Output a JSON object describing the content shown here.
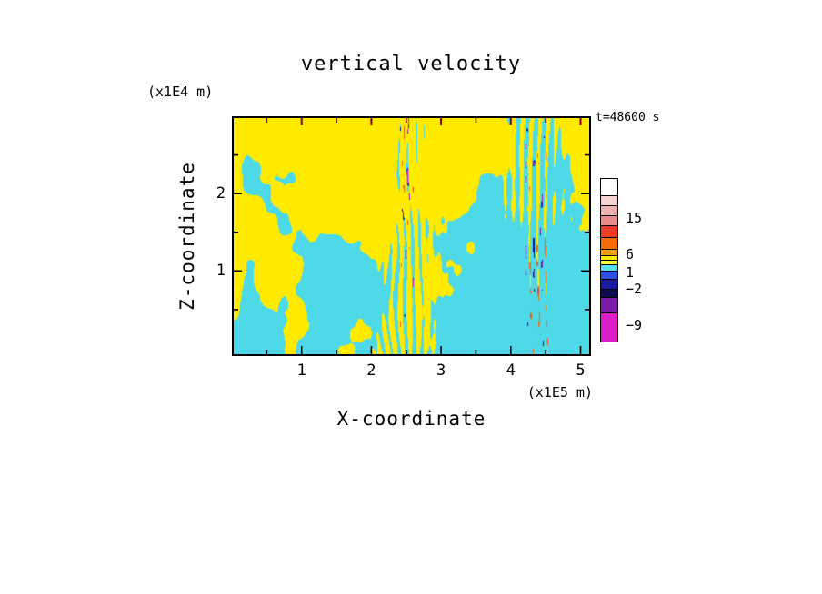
{
  "title": "vertical velocity",
  "time_label": "t=48600 s",
  "axes": {
    "x_label": "X-coordinate",
    "x_unit": "(x1E5 m)",
    "x_ticks": [
      "1",
      "2",
      "3",
      "4",
      "5"
    ],
    "y_label": "Z-coordinate",
    "y_unit": "(x1E4 m)",
    "y_ticks": [
      "1",
      "2"
    ]
  },
  "colorbar": {
    "segments": [
      {
        "color": "#FFFFFF",
        "h": 20
      },
      {
        "color": "#F6D4D4",
        "h": 12
      },
      {
        "color": "#EFB0B0",
        "h": 12
      },
      {
        "color": "#E88A8A",
        "h": 12
      },
      {
        "color": "#EE3C2C",
        "h": 14
      },
      {
        "color": "#F76B00",
        "h": 14
      },
      {
        "color": "#FB9E14",
        "h": 8
      },
      {
        "color": "#FFE800",
        "h": 6
      },
      {
        "color": "#EFFF30",
        "h": 6
      },
      {
        "color": "#58DEEC",
        "h": 8
      },
      {
        "color": "#2E50E0",
        "h": 10
      },
      {
        "color": "#1A1A9C",
        "h": 12
      },
      {
        "color": "#0C0A50",
        "h": 10
      },
      {
        "color": "#7D1CA8",
        "h": 18
      },
      {
        "color": "#DC1EC8",
        "h": 33
      }
    ],
    "labels": [
      {
        "text": "15",
        "y": 44
      },
      {
        "text": "6",
        "y": 84
      },
      {
        "text": "1",
        "y": 104
      },
      {
        "text": "−2",
        "y": 122
      },
      {
        "text": "−9",
        "y": 162
      }
    ]
  },
  "chart_data": {
    "type": "heatmap",
    "title": "vertical velocity",
    "xlabel": "X-coordinate (x1E5 m)",
    "ylabel": "Z-coordinate (x1E4 m)",
    "xlim": [
      0,
      5.15
    ],
    "ylim": [
      0,
      3.0
    ],
    "x_tick_values": [
      1,
      2,
      3,
      4,
      5
    ],
    "y_tick_values": [
      1,
      2
    ],
    "minor_x_ticks": [
      0.5,
      1.5,
      2.5,
      3.5,
      4.5
    ],
    "minor_y_ticks": [
      0.5,
      1.5,
      2.5
    ],
    "time_annotation": "t=48600 s",
    "contour_levels": [
      -9,
      -2,
      1,
      6,
      15
    ],
    "field_colors": {
      "positive_band": "#FFEA00",
      "negative_band": "#4ED9E8"
    },
    "extreme_colors": {
      "strong_negative": [
        "#16128F",
        "#7E1CAD",
        "#DA18C6"
      ],
      "strong_positive": [
        "#E8401C",
        "#F07010"
      ]
    },
    "top_tick_color": "#8B0000",
    "legend_position": "right",
    "grid": false,
    "pattern_hint": {
      "yellow_fraction_top": 0.65,
      "yellow_fraction_bottom": 0.18,
      "fine_streak_centers_x": [
        2.5,
        4.38
      ],
      "left_edge_yellow_column": true
    }
  }
}
